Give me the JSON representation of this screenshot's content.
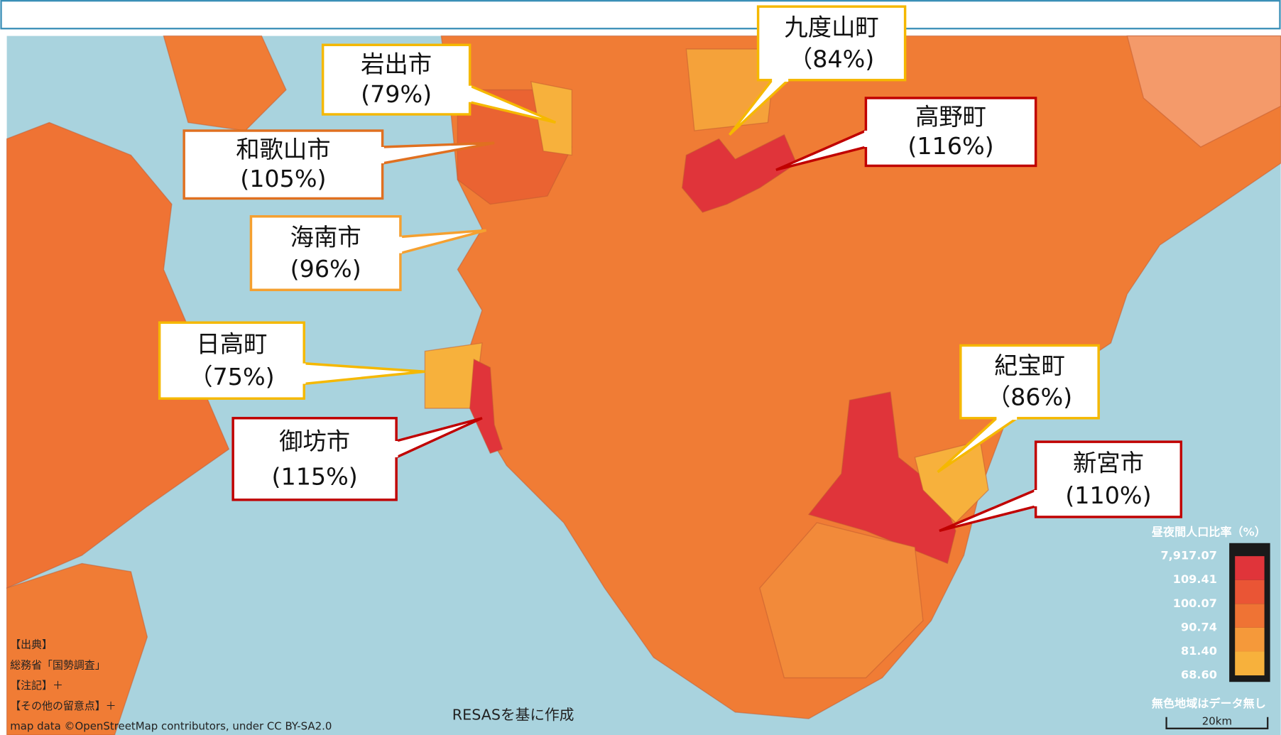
{
  "callouts": [
    {
      "name": "岩出市",
      "ratio": "(79%)"
    },
    {
      "name": "和歌山市",
      "ratio": "(105%)"
    },
    {
      "name": "海南市",
      "ratio": "(96%)"
    },
    {
      "name": "日高町",
      "ratio": "（75%)"
    },
    {
      "name": "御坊市",
      "ratio": "(115%)"
    },
    {
      "name": "九度山町",
      "ratio": "（84%)"
    },
    {
      "name": "高野町",
      "ratio": "(116%)"
    },
    {
      "name": "紀宝町",
      "ratio": "（86%)"
    },
    {
      "name": "新宮市",
      "ratio": "(110%)"
    }
  ],
  "legend": {
    "title": "昼夜間人口比率（%）",
    "ticks": [
      "7,917.07",
      "109.41",
      "100.07",
      "90.74",
      "81.40",
      "68.60"
    ],
    "note": "無色地域はデータ無し",
    "scale": "20km"
  },
  "notes": [
    "【出典】",
    "総務省「国勢調査」",
    "【注記】＋",
    "【その他の留意点】＋",
    "map data ©OpenStreetMap contributors, under CC BY-SA2.0"
  ],
  "credit": "RESASを基に作成"
}
